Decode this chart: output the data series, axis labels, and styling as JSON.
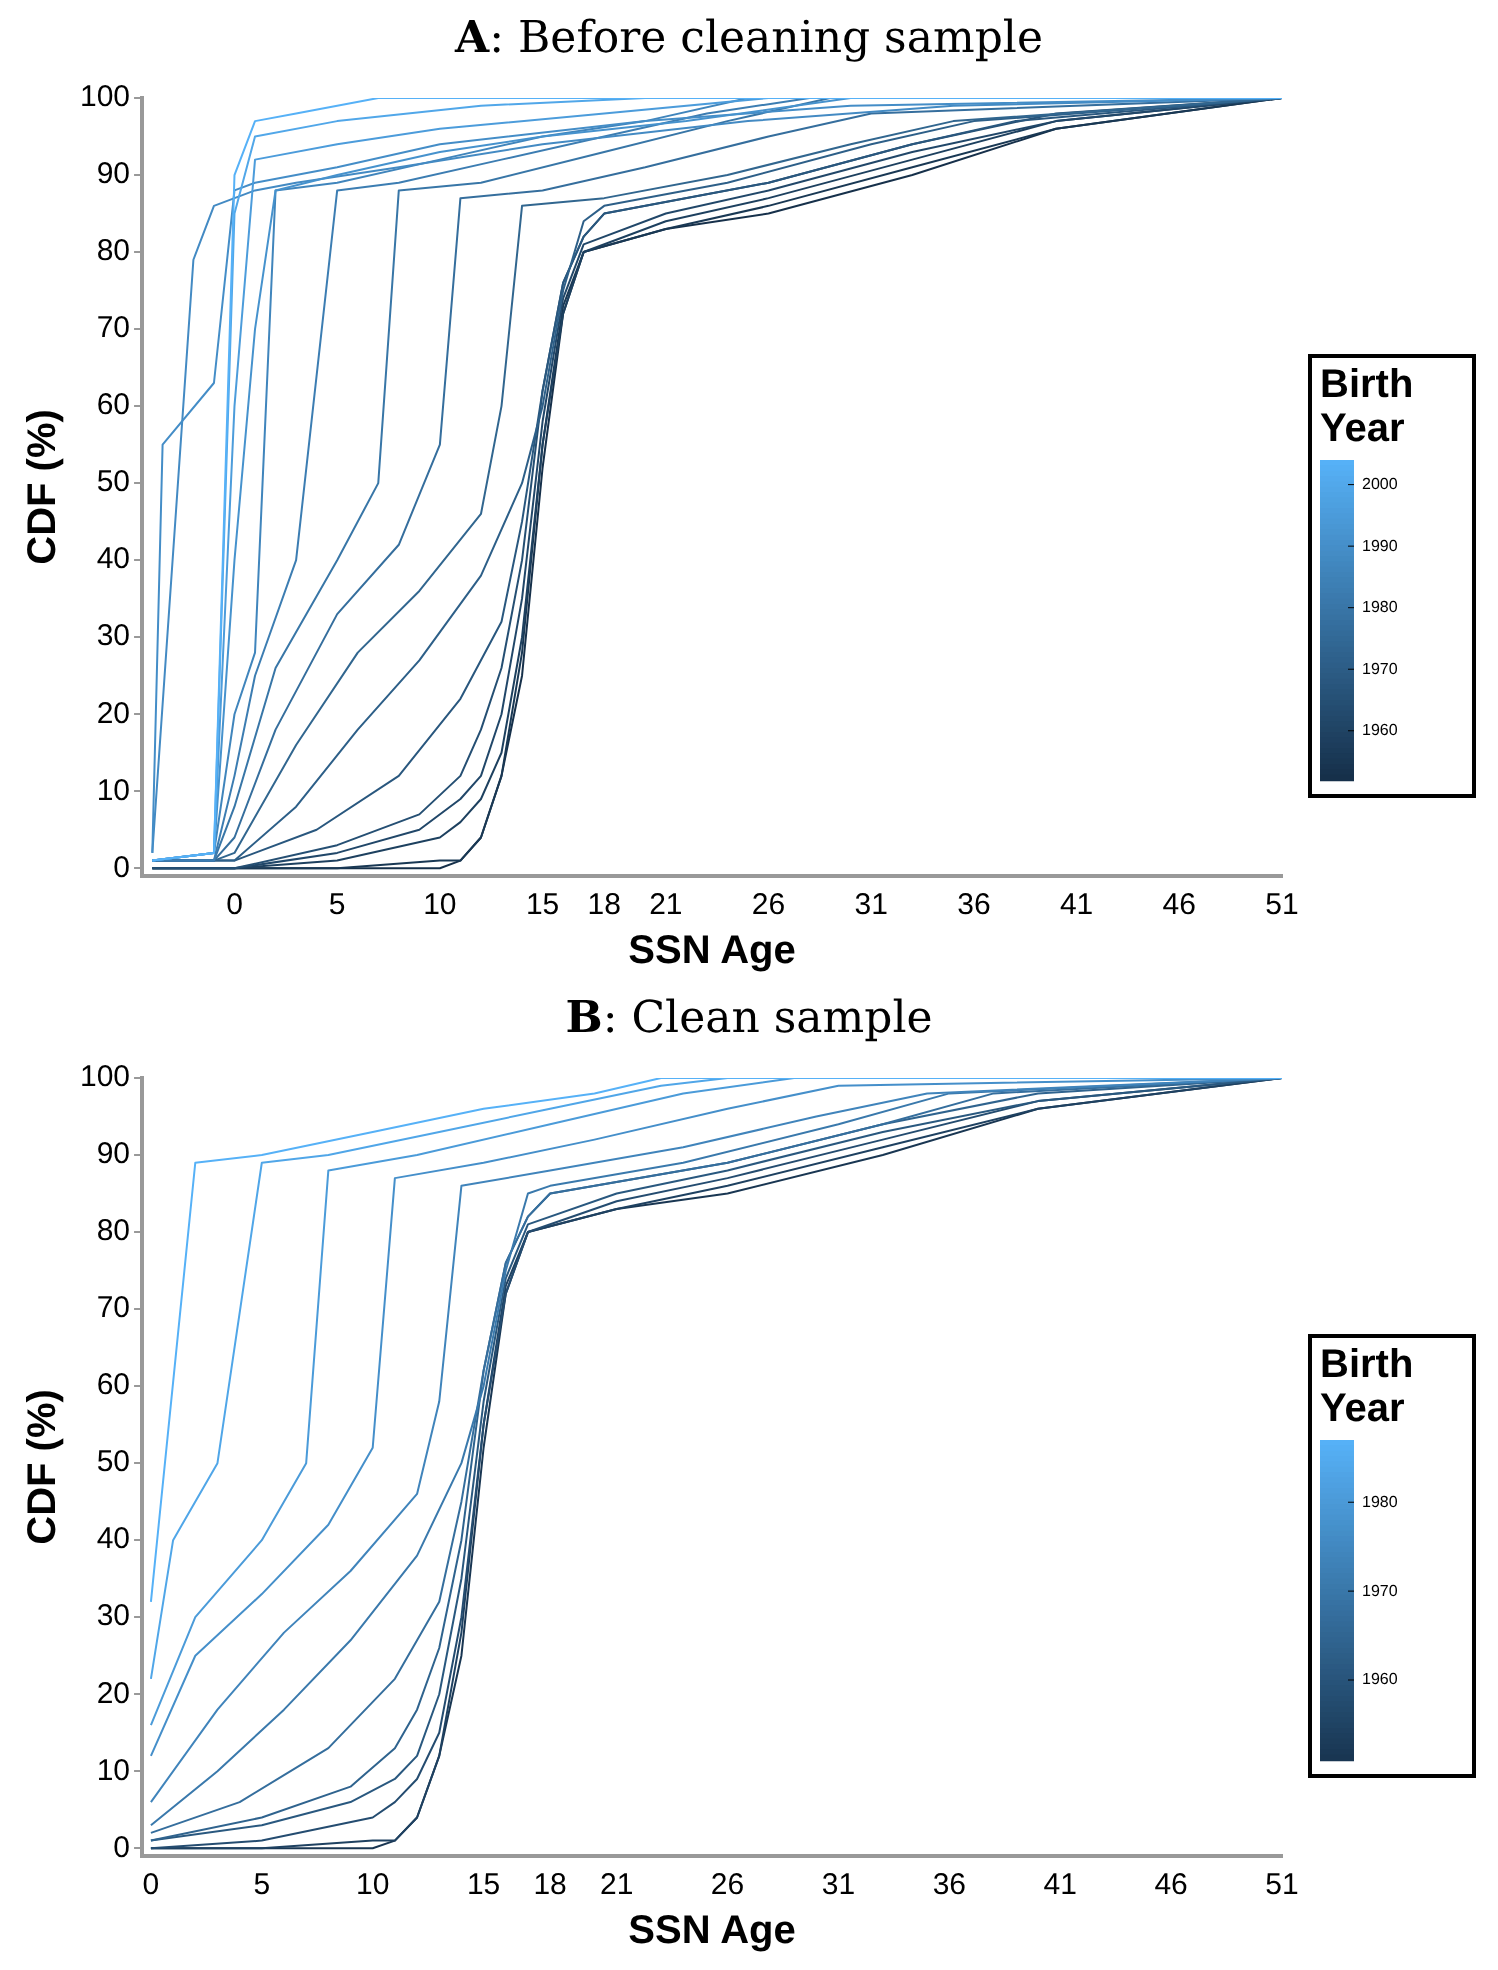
{
  "chart_data": [
    {
      "type": "line",
      "title": "A: Before cleaning sample",
      "xlabel": "SSN Age",
      "ylabel": "CDF (%)",
      "clabel": "Birth Year",
      "clim": [
        1952,
        2004
      ],
      "cticks": [
        1960,
        1970,
        1980,
        1990,
        2000
      ],
      "xlim": [
        -4.5,
        51
      ],
      "xticks": [
        0,
        5,
        10,
        15,
        18,
        21,
        26,
        31,
        36,
        41,
        46,
        51
      ],
      "ylim": [
        -1,
        100
      ],
      "yticks": [
        0,
        10,
        20,
        30,
        40,
        50,
        60,
        70,
        80,
        90,
        100
      ],
      "grid": false,
      "legend": false,
      "marker": "none",
      "series": [
        {
          "color": "#56b1f7",
          "x": [
            -4,
            -1,
            0,
            1,
            3,
            7,
            51
          ],
          "values": [
            1,
            2,
            90,
            97,
            98,
            100,
            100
          ]
        },
        {
          "color": "#51a7e9",
          "x": [
            -4,
            -1,
            0,
            1,
            5,
            12,
            20,
            51
          ],
          "values": [
            1,
            2,
            85,
            95,
            97,
            99,
            100,
            100
          ]
        },
        {
          "color": "#4c9cdb",
          "x": [
            -4,
            -1,
            0,
            1,
            5,
            10,
            18,
            26,
            51
          ],
          "values": [
            1,
            2,
            60,
            92,
            94,
            96,
            98,
            100,
            100
          ]
        },
        {
          "color": "#4692cd",
          "x": [
            -4,
            -1,
            0,
            1,
            2,
            5,
            10,
            15,
            22,
            30,
            51
          ],
          "values": [
            1,
            2,
            40,
            70,
            88,
            90,
            93,
            95,
            97,
            100,
            100
          ]
        },
        {
          "color": "#448dc7",
          "x": [
            -4,
            -3.5,
            -1,
            0,
            1,
            5,
            10,
            20,
            30,
            51
          ],
          "values": [
            2,
            55,
            63,
            88,
            89,
            91,
            94,
            97,
            99,
            100
          ]
        },
        {
          "color": "#438ac3",
          "x": [
            -4,
            -2,
            -1,
            1,
            3,
            8,
            15,
            25,
            35,
            51
          ],
          "values": [
            2,
            79,
            86,
            88,
            89,
            91,
            94,
            97,
            99,
            100
          ]
        },
        {
          "color": "#4085bc",
          "x": [
            -4,
            -1,
            0,
            1,
            2,
            5,
            10,
            15,
            20,
            25,
            51
          ],
          "values": [
            1,
            2,
            20,
            28,
            88,
            89,
            92,
            95,
            97,
            100,
            100
          ]
        },
        {
          "color": "#3c7db2",
          "x": [
            -4,
            -1,
            0,
            1,
            3,
            5,
            8,
            13,
            18,
            23,
            28,
            51
          ],
          "values": [
            1,
            1,
            12,
            25,
            40,
            88,
            89,
            92,
            95,
            98,
            100,
            100
          ]
        },
        {
          "color": "#3876a7",
          "x": [
            -4,
            -1,
            0,
            2,
            5,
            7,
            8,
            12,
            18,
            24,
            29,
            51
          ],
          "values": [
            1,
            1,
            8,
            26,
            40,
            50,
            88,
            89,
            93,
            97,
            100,
            100
          ]
        },
        {
          "color": "#356e9d",
          "x": [
            -4,
            -1,
            0,
            2,
            5,
            8,
            10,
            11,
            15,
            20,
            26,
            31,
            51
          ],
          "values": [
            1,
            1,
            4,
            18,
            33,
            42,
            55,
            87,
            88,
            91,
            95,
            98,
            100
          ]
        },
        {
          "color": "#31668f",
          "x": [
            -4,
            -1,
            0,
            3,
            6,
            9,
            12,
            13,
            14,
            18,
            24,
            30,
            35,
            51
          ],
          "values": [
            1,
            1,
            2,
            16,
            28,
            36,
            46,
            60,
            86,
            87,
            90,
            94,
            97,
            100
          ]
        },
        {
          "color": "#2d5f88",
          "x": [
            -4,
            0,
            3,
            6,
            9,
            12,
            14,
            15,
            16,
            17,
            18,
            24,
            31,
            36,
            51
          ],
          "values": [
            1,
            1,
            8,
            18,
            27,
            38,
            50,
            60,
            75,
            84,
            86,
            89,
            94,
            97,
            100
          ]
        },
        {
          "color": "#29577e",
          "x": [
            -4,
            0,
            4,
            8,
            11,
            13,
            14,
            15,
            16,
            17,
            18,
            26,
            33,
            38,
            51
          ],
          "values": [
            1,
            1,
            5,
            12,
            22,
            32,
            45,
            62,
            76,
            82,
            85,
            89,
            94,
            97,
            100
          ]
        },
        {
          "color": "#254f73",
          "x": [
            -4,
            0,
            5,
            9,
            11,
            12,
            13,
            14,
            15,
            16,
            17,
            18,
            26,
            33,
            40,
            51
          ],
          "values": [
            0,
            0,
            3,
            7,
            12,
            18,
            26,
            40,
            62,
            76,
            82,
            85,
            89,
            94,
            98,
            100
          ]
        },
        {
          "color": "#214769",
          "x": [
            -4,
            0,
            5,
            9,
            11,
            12,
            13,
            14,
            15,
            16,
            17,
            21,
            26,
            33,
            40,
            51
          ],
          "values": [
            0,
            0,
            2,
            5,
            9,
            12,
            20,
            35,
            58,
            74,
            81,
            85,
            88,
            93,
            97,
            100
          ]
        },
        {
          "color": "#1d405f",
          "x": [
            -4,
            0,
            5,
            10,
            11,
            12,
            13,
            14,
            15,
            16,
            17,
            21,
            26,
            33,
            40,
            51
          ],
          "values": [
            0,
            0,
            1,
            4,
            6,
            9,
            15,
            30,
            55,
            72,
            80,
            84,
            87,
            92,
            97,
            100
          ]
        },
        {
          "color": "#193854",
          "x": [
            -4,
            0,
            5,
            10,
            11,
            12,
            13,
            14,
            15,
            16,
            17,
            21,
            26,
            33,
            40,
            51
          ],
          "values": [
            0,
            0,
            0,
            1,
            1,
            4,
            12,
            28,
            55,
            73,
            80,
            83,
            86,
            91,
            96,
            100
          ]
        },
        {
          "color": "#16304a",
          "x": [
            -4,
            0,
            10,
            11,
            12,
            13,
            14,
            15,
            16,
            17,
            21,
            26,
            33,
            40,
            51
          ],
          "values": [
            0,
            0,
            0,
            1,
            4,
            12,
            25,
            52,
            72,
            80,
            83,
            85,
            90,
            96,
            100
          ]
        }
      ]
    },
    {
      "type": "line",
      "title": "B: Clean sample",
      "xlabel": "SSN Age",
      "ylabel": "CDF (%)",
      "clabel": "Birth Year",
      "clim": [
        1951,
        1987
      ],
      "cticks": [
        1960,
        1970,
        1980
      ],
      "xlim": [
        -0.4,
        51
      ],
      "xticks": [
        0,
        5,
        10,
        15,
        18,
        21,
        26,
        31,
        36,
        41,
        46,
        51
      ],
      "ylim": [
        -1,
        100
      ],
      "yticks": [
        0,
        10,
        20,
        30,
        40,
        50,
        60,
        70,
        80,
        90,
        100
      ],
      "grid": false,
      "legend": false,
      "marker": "none",
      "series": [
        {
          "color": "#56b1f7",
          "x": [
            0,
            2,
            5,
            10,
            15,
            20,
            23,
            51
          ],
          "values": [
            32,
            89,
            90,
            93,
            96,
            98,
            100,
            100
          ]
        },
        {
          "color": "#50a6e8",
          "x": [
            0,
            1,
            3,
            5,
            8,
            13,
            18,
            23,
            26,
            51
          ],
          "values": [
            22,
            40,
            50,
            89,
            90,
            93,
            96,
            99,
            100,
            100
          ]
        },
        {
          "color": "#4b9bd9",
          "x": [
            0,
            2,
            5,
            7,
            8,
            12,
            18,
            24,
            29,
            51
          ],
          "values": [
            16,
            30,
            40,
            50,
            88,
            90,
            94,
            98,
            100,
            100
          ]
        },
        {
          "color": "#458fca",
          "x": [
            0,
            2,
            5,
            8,
            10,
            11,
            15,
            20,
            26,
            31,
            51
          ],
          "values": [
            12,
            25,
            33,
            42,
            52,
            87,
            89,
            92,
            96,
            99,
            100
          ]
        },
        {
          "color": "#4084bb",
          "x": [
            0,
            3,
            6,
            9,
            12,
            13,
            14,
            18,
            24,
            30,
            35,
            51
          ],
          "values": [
            6,
            18,
            28,
            36,
            46,
            58,
            86,
            88,
            91,
            95,
            98,
            100
          ]
        },
        {
          "color": "#3a79ac",
          "x": [
            0,
            3,
            6,
            9,
            12,
            14,
            15,
            16,
            17,
            18,
            24,
            31,
            36,
            51
          ],
          "values": [
            3,
            10,
            18,
            27,
            38,
            50,
            60,
            75,
            85,
            86,
            89,
            94,
            98,
            100
          ]
        },
        {
          "color": "#356e9d",
          "x": [
            0,
            4,
            8,
            11,
            13,
            14,
            15,
            16,
            17,
            18,
            26,
            33,
            38,
            51
          ],
          "values": [
            2,
            6,
            13,
            22,
            32,
            45,
            62,
            76,
            82,
            85,
            89,
            94,
            98,
            100
          ]
        },
        {
          "color": "#2f638e",
          "x": [
            0,
            5,
            9,
            11,
            12,
            13,
            14,
            15,
            16,
            17,
            18,
            26,
            33,
            40,
            51
          ],
          "values": [
            1,
            4,
            8,
            13,
            18,
            26,
            40,
            62,
            76,
            82,
            85,
            89,
            94,
            98,
            100
          ]
        },
        {
          "color": "#29587f",
          "x": [
            0,
            5,
            9,
            11,
            12,
            13,
            14,
            15,
            16,
            17,
            21,
            26,
            33,
            40,
            51
          ],
          "values": [
            1,
            3,
            6,
            9,
            12,
            20,
            35,
            58,
            74,
            81,
            85,
            88,
            93,
            97,
            100
          ]
        },
        {
          "color": "#244c70",
          "x": [
            0,
            5,
            10,
            11,
            12,
            13,
            14,
            15,
            16,
            17,
            21,
            26,
            33,
            40,
            51
          ],
          "values": [
            0,
            1,
            4,
            6,
            9,
            15,
            30,
            55,
            72,
            80,
            84,
            87,
            92,
            97,
            100
          ]
        },
        {
          "color": "#1e4161",
          "x": [
            0,
            5,
            10,
            11,
            12,
            13,
            14,
            15,
            16,
            17,
            21,
            26,
            33,
            40,
            51
          ],
          "values": [
            0,
            0,
            1,
            1,
            4,
            12,
            28,
            55,
            73,
            80,
            83,
            86,
            91,
            96,
            100
          ]
        },
        {
          "color": "#193652",
          "x": [
            0,
            10,
            11,
            12,
            13,
            14,
            15,
            16,
            17,
            21,
            26,
            33,
            40,
            51
          ],
          "values": [
            0,
            0,
            1,
            4,
            12,
            25,
            52,
            72,
            80,
            83,
            85,
            90,
            96,
            100
          ]
        }
      ]
    }
  ]
}
